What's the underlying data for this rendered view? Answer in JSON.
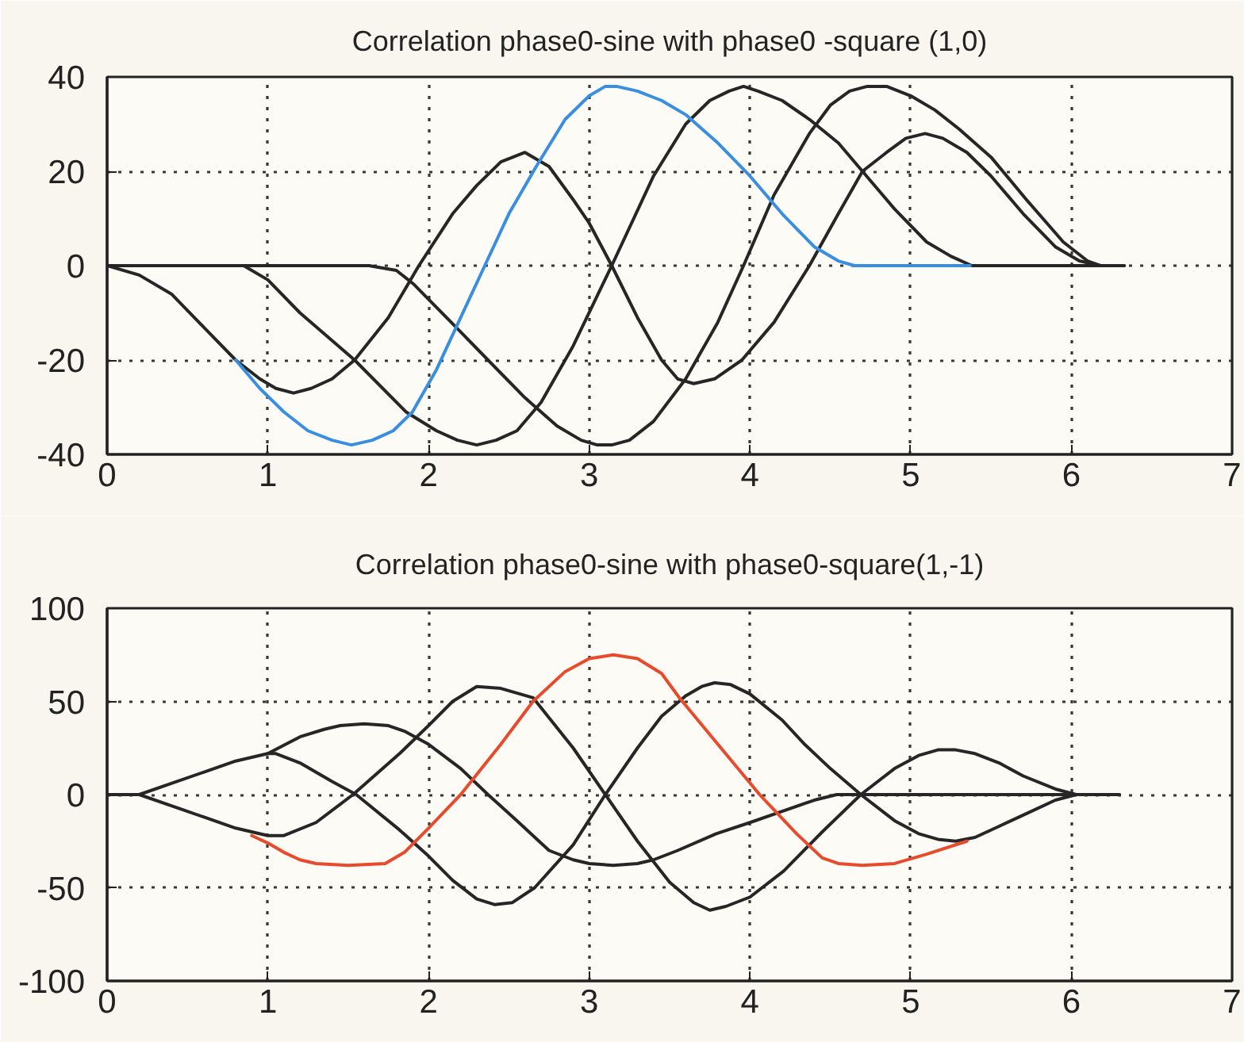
{
  "chart_data": [
    {
      "type": "line",
      "title": "Correlation phase0-sine with phase0 -square (1,0)",
      "xlim": [
        0,
        7
      ],
      "ylim": [
        -40,
        40
      ],
      "xticks": [
        0,
        1,
        2,
        3,
        4,
        5,
        6,
        7
      ],
      "yticks": [
        -40,
        -20,
        0,
        20,
        40
      ],
      "grid": true,
      "series": [
        {
          "color": "#262626",
          "x": [
            0,
            0.2,
            0.4,
            0.6,
            0.8,
            0.95,
            1.05,
            1.16,
            1.27,
            1.4,
            1.54,
            1.75,
            1.94,
            2.15,
            2.3,
            2.45,
            2.6,
            2.75,
            2.9,
            3.0,
            3.14,
            3.3,
            3.45,
            3.55,
            3.65,
            3.78,
            3.95,
            4.15,
            4.37,
            4.55,
            4.7,
            4.85,
            4.97,
            5.09,
            5.2,
            5.35,
            5.5,
            5.7,
            5.9,
            6.05,
            6.18
          ],
          "values": [
            0,
            -2,
            -6,
            -13,
            -20,
            -24,
            -26,
            -27,
            -26,
            -24,
            -20,
            -11,
            0,
            11,
            17,
            22,
            24,
            21,
            14,
            9,
            0,
            -11,
            -20,
            -24,
            -25,
            -24,
            -20,
            -12,
            0,
            11,
            20,
            24,
            27,
            28,
            27,
            24,
            19,
            11,
            4,
            1,
            0
          ]
        },
        {
          "color": "#262626",
          "x": [
            0,
            0.85,
            1.0,
            1.2,
            1.54,
            1.86,
            2.05,
            2.18,
            2.3,
            2.42,
            2.55,
            2.7,
            2.9,
            3.14,
            3.4,
            3.6,
            3.75,
            3.87,
            3.96,
            4.05,
            4.2,
            4.37,
            4.55,
            4.7,
            4.9,
            5.1,
            5.25,
            5.38,
            6.33
          ],
          "values": [
            0,
            0,
            -3,
            -10,
            -20,
            -31,
            -35,
            -37,
            -38,
            -37,
            -35,
            -29,
            -17,
            0,
            19,
            30,
            35,
            37,
            38,
            37,
            35,
            31,
            26,
            20,
            12,
            5,
            2,
            0,
            0
          ]
        },
        {
          "color": "#262626",
          "x": [
            0.85,
            1.63,
            1.8,
            1.91,
            2.17,
            2.37,
            2.6,
            2.8,
            2.95,
            3.05,
            3.14,
            3.25,
            3.4,
            3.6,
            3.8,
            3.96,
            4.15,
            4.37,
            4.5,
            4.62,
            4.73,
            4.85,
            5.0,
            5.15,
            5.3,
            5.5,
            5.72,
            5.95,
            6.1,
            6.18
          ],
          "values": [
            0,
            0,
            -1,
            -4,
            -13,
            -20,
            -28,
            -34,
            -37,
            -38,
            -38,
            -37,
            -33,
            -24,
            -12,
            0,
            15,
            28,
            34,
            37,
            38,
            38,
            36,
            33,
            29,
            23,
            14,
            5,
            1,
            0
          ]
        },
        {
          "color": "#3a8ee0",
          "x": [
            0.8,
            0.95,
            1.1,
            1.25,
            1.4,
            1.52,
            1.65,
            1.78,
            1.9,
            2.05,
            2.2,
            2.35,
            2.5,
            2.67,
            2.85,
            3.0,
            3.1,
            3.17,
            3.3,
            3.45,
            3.6,
            3.8,
            4.0,
            4.2,
            4.4,
            4.55,
            4.65,
            5.37
          ],
          "values": [
            -20,
            -26,
            -31,
            -35,
            -37,
            -38,
            -37,
            -35,
            -31,
            -22,
            -11,
            0,
            11,
            21,
            31,
            36,
            38,
            38,
            37,
            35,
            32,
            26,
            19,
            11,
            4,
            1,
            0,
            0
          ]
        }
      ]
    },
    {
      "type": "line",
      "title": "Correlation phase0-sine with phase0-square(1,-1)",
      "xlim": [
        0,
        7
      ],
      "ylim": [
        -100,
        100
      ],
      "xticks": [
        0,
        1,
        2,
        3,
        4,
        5,
        6,
        7
      ],
      "yticks": [
        -100,
        -50,
        0,
        50,
        100
      ],
      "grid": true,
      "series": [
        {
          "color": "#262626",
          "x": [
            1.0,
            1.05,
            1.2,
            1.4,
            1.55,
            1.82,
            2.0,
            2.15,
            2.3,
            2.41,
            2.52,
            2.66,
            2.9,
            3.1,
            3.3,
            3.45,
            3.6,
            3.7,
            3.78,
            3.88,
            4.0,
            4.2,
            4.34,
            4.5,
            4.69,
            4.9,
            5.05,
            5.17,
            5.28,
            5.4,
            5.55,
            5.7,
            5.9,
            6.03
          ],
          "values": [
            22,
            22,
            17,
            7,
            0,
            -19,
            -33,
            -46,
            -56,
            -59,
            -58,
            -50,
            -27,
            0,
            25,
            42,
            53,
            58,
            60,
            59,
            54,
            40,
            27,
            14,
            0,
            -14,
            -21,
            -24,
            -25,
            -23,
            -17,
            -11,
            -3,
            0
          ]
        },
        {
          "color": "#262626",
          "x": [
            0.2,
            0.4,
            0.6,
            0.8,
            1.0,
            1.1,
            1.3,
            1.53,
            1.82,
            2.0,
            2.15,
            2.3,
            2.45,
            2.65,
            2.9,
            3.1,
            3.3,
            3.5,
            3.65,
            3.75,
            3.85,
            4.0,
            4.21,
            4.45,
            4.69,
            4.9,
            5.05,
            5.17,
            5.28,
            5.4,
            5.55,
            5.7,
            5.9,
            6.03
          ],
          "values": [
            0,
            -6,
            -12,
            -18,
            -22,
            -22,
            -15,
            0,
            22,
            37,
            50,
            58,
            57,
            52,
            25,
            0,
            -25,
            -47,
            -58,
            -62,
            -60,
            -55,
            -41,
            -20,
            0,
            14,
            21,
            24,
            24,
            22,
            17,
            10,
            3,
            0
          ]
        },
        {
          "color": "#262626",
          "x": [
            0,
            0.2,
            0.4,
            0.6,
            0.8,
            1.0,
            1.2,
            1.35,
            1.45,
            1.6,
            1.75,
            1.85,
            2.0,
            2.2,
            2.37,
            2.55,
            2.75,
            2.9,
            3.0,
            3.15,
            3.3,
            3.4,
            3.55,
            3.79,
            4.0,
            4.2,
            4.4,
            4.54,
            6.3
          ],
          "values": [
            0,
            0,
            6,
            12,
            18,
            22,
            31,
            35,
            37,
            38,
            37,
            34,
            27,
            14,
            0,
            -14,
            -30,
            -35,
            -37,
            -38,
            -37,
            -35,
            -30,
            -21,
            -15,
            -9,
            -3,
            0,
            0
          ]
        },
        {
          "color": "#e84a2c",
          "x": [
            0.9,
            1.0,
            1.1,
            1.2,
            1.3,
            1.5,
            1.73,
            1.85,
            2.0,
            2.2,
            2.45,
            2.65,
            2.85,
            3.0,
            3.15,
            3.3,
            3.45,
            3.56,
            3.8,
            4.06,
            4.29,
            4.45,
            4.55,
            4.7,
            4.9,
            5.1,
            5.35
          ],
          "values": [
            -22,
            -26,
            -31,
            -35,
            -37,
            -38,
            -37,
            -31,
            -18,
            0,
            27,
            50,
            66,
            73,
            75,
            73,
            65,
            52,
            27,
            0,
            -21,
            -34,
            -37,
            -38,
            -37,
            -32,
            -25
          ]
        }
      ]
    }
  ]
}
